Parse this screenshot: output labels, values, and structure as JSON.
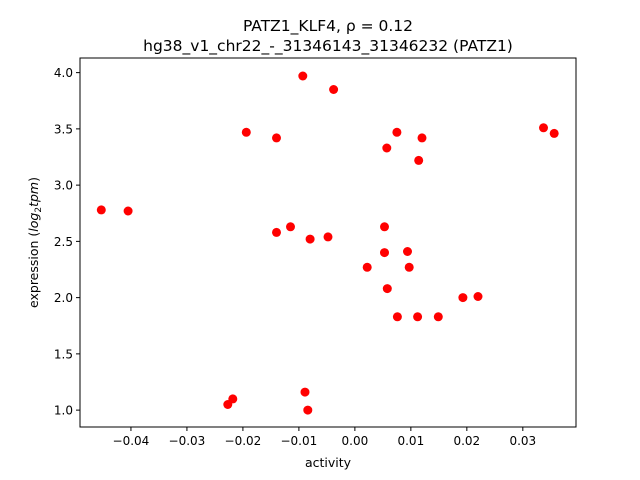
{
  "chart_data": {
    "type": "scatter",
    "title_line1": "PATZ1_KLF4, ρ = 0.12",
    "title_line2": "hg38_v1_chr22_-_31346143_31346232 (PATZ1)",
    "xlabel": "activity",
    "ylabel_main": "expression (",
    "ylabel_italic": "log",
    "ylabel_sub": "2",
    "ylabel_italic2": "tpm",
    "ylabel_end": ")",
    "xlim": [
      -0.0491,
      0.0395
    ],
    "ylim": [
      0.85,
      4.13
    ],
    "xticks": [
      -0.04,
      -0.03,
      -0.02,
      -0.01,
      0.0,
      0.01,
      0.02,
      0.03
    ],
    "xtick_labels": [
      "−0.04",
      "−0.03",
      "−0.02",
      "−0.01",
      "0.00",
      "0.01",
      "0.02",
      "0.03"
    ],
    "yticks": [
      1.0,
      1.5,
      2.0,
      2.5,
      3.0,
      3.5,
      4.0
    ],
    "ytick_labels": [
      "1.0",
      "1.5",
      "2.0",
      "2.5",
      "3.0",
      "3.5",
      "4.0"
    ],
    "marker_color": "#ff0000",
    "points": [
      {
        "x": -0.0453,
        "y": 2.78
      },
      {
        "x": -0.0405,
        "y": 2.77
      },
      {
        "x": -0.0227,
        "y": 1.05
      },
      {
        "x": -0.0218,
        "y": 1.1
      },
      {
        "x": -0.0194,
        "y": 3.47
      },
      {
        "x": -0.014,
        "y": 3.42
      },
      {
        "x": -0.014,
        "y": 2.58
      },
      {
        "x": -0.0115,
        "y": 2.63
      },
      {
        "x": -0.0093,
        "y": 3.97
      },
      {
        "x": -0.0089,
        "y": 1.16
      },
      {
        "x": -0.0084,
        "y": 1.0
      },
      {
        "x": -0.008,
        "y": 2.52
      },
      {
        "x": -0.0048,
        "y": 2.54
      },
      {
        "x": -0.0038,
        "y": 3.85
      },
      {
        "x": 0.0022,
        "y": 2.27
      },
      {
        "x": 0.0053,
        "y": 2.63
      },
      {
        "x": 0.0053,
        "y": 2.4
      },
      {
        "x": 0.0057,
        "y": 3.33
      },
      {
        "x": 0.0058,
        "y": 2.08
      },
      {
        "x": 0.0075,
        "y": 3.47
      },
      {
        "x": 0.0076,
        "y": 1.83
      },
      {
        "x": 0.0094,
        "y": 2.41
      },
      {
        "x": 0.0097,
        "y": 2.27
      },
      {
        "x": 0.0112,
        "y": 1.83
      },
      {
        "x": 0.0114,
        "y": 3.22
      },
      {
        "x": 0.012,
        "y": 3.42
      },
      {
        "x": 0.0149,
        "y": 1.83
      },
      {
        "x": 0.0193,
        "y": 2.0
      },
      {
        "x": 0.022,
        "y": 2.01
      },
      {
        "x": 0.0337,
        "y": 3.51
      },
      {
        "x": 0.0356,
        "y": 3.46
      }
    ]
  }
}
